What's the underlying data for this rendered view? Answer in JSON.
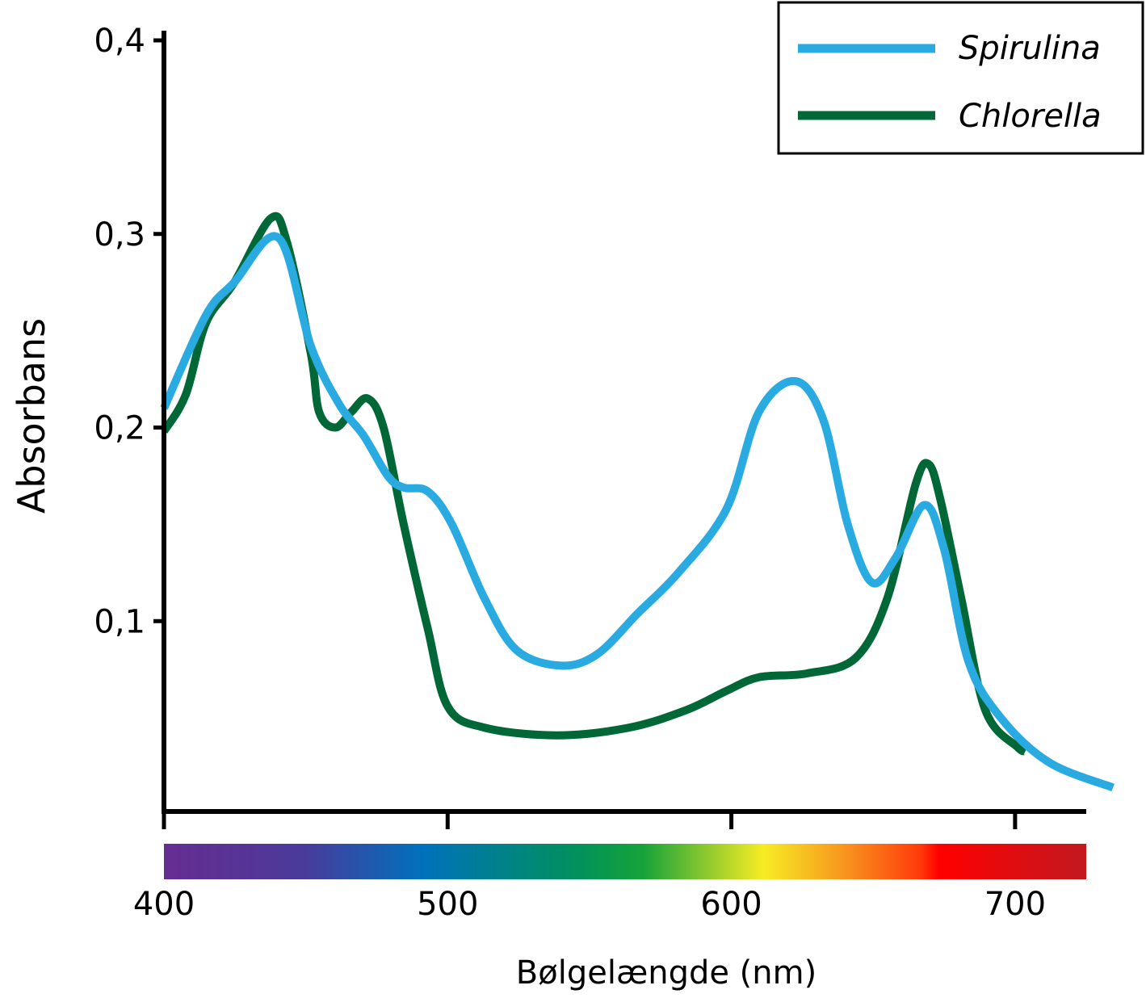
{
  "chart_data": {
    "type": "line",
    "title": "",
    "xlabel": "Bølgelængde (nm)",
    "ylabel": "Absorbans",
    "xlim": [
      400,
      725
    ],
    "ylim": [
      0,
      0.4
    ],
    "x_ticks": [
      400,
      500,
      600,
      700
    ],
    "x_tick_labels": [
      "400",
      "500",
      "600",
      "700"
    ],
    "y_ticks": [
      0.1,
      0.2,
      0.3,
      0.4
    ],
    "y_tick_labels": [
      "0,1",
      "0,2",
      "0,3",
      "0,4"
    ],
    "grid": false,
    "legend_position": "top-right",
    "spectrum_bar": true,
    "series": [
      {
        "name": "Spirulina",
        "color": "#29abe2",
        "x": [
          400,
          414.8,
          424.8,
          440.4,
          451.8,
          461.8,
          470.3,
          478.9,
          484.5,
          493,
          501.5,
          512.9,
          524.3,
          540,
          552.8,
          567,
          581.3,
          598.3,
          609.7,
          622.5,
          632.4,
          641,
          649.5,
          658,
          668,
          675,
          683.6,
          695,
          712,
          734.5
        ],
        "y": [
          0.21,
          0.258,
          0.275,
          0.298,
          0.242,
          0.212,
          0.196,
          0.175,
          0.169,
          0.167,
          0.15,
          0.112,
          0.085,
          0.077,
          0.083,
          0.104,
          0.125,
          0.158,
          0.208,
          0.224,
          0.204,
          0.15,
          0.12,
          0.133,
          0.16,
          0.137,
          0.079,
          0.05,
          0.027,
          0.014
        ]
      },
      {
        "name": "Chlorella",
        "color": "#006837",
        "x": [
          400,
          407.7,
          414.8,
          424.8,
          437.6,
          443.3,
          451.8,
          454.7,
          460.4,
          466,
          471.8,
          477.4,
          484.5,
          493,
          500,
          512.9,
          538.5,
          564,
          584,
          598.3,
          609.7,
          626.7,
          643.8,
          655,
          665,
          669.6,
          673.8,
          681,
          689.5,
          700.8,
          703.7
        ],
        "y": [
          0.198,
          0.217,
          0.254,
          0.275,
          0.308,
          0.296,
          0.238,
          0.208,
          0.2,
          0.208,
          0.215,
          0.2,
          0.15,
          0.096,
          0.056,
          0.045,
          0.041,
          0.045,
          0.054,
          0.064,
          0.071,
          0.073,
          0.081,
          0.112,
          0.171,
          0.181,
          0.162,
          0.112,
          0.054,
          0.035,
          0.033
        ]
      }
    ]
  }
}
